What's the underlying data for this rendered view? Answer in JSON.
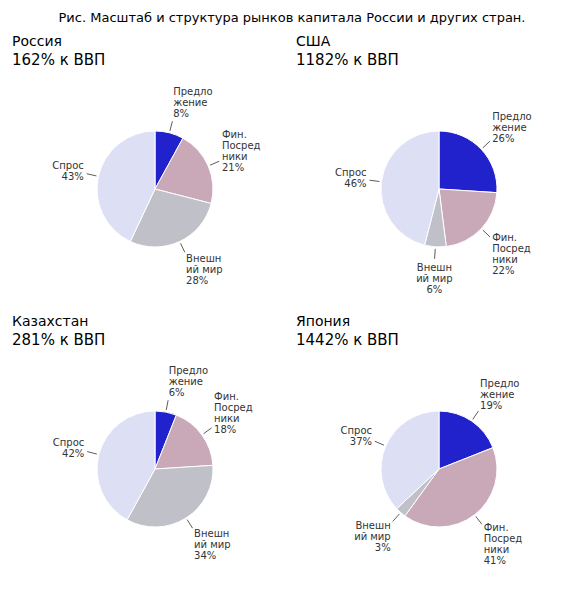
{
  "title": "Рис. Масштаб и структура рынков капитала России и других стран.",
  "chart_data": [
    {
      "type": "pie",
      "title": "Россия",
      "subtitle": "162% к ВВП",
      "categories": [
        "Предло\nжение",
        "Фин.\nПосред\nники",
        "Внешн\nий мир",
        "Спрос"
      ],
      "values": [
        8,
        21,
        28,
        43
      ],
      "value_labels": [
        "8%",
        "21%",
        "28%",
        "43%"
      ],
      "colors": [
        "#2222cc",
        "#c9a8b8",
        "#c0c0c8",
        "#dde0f5"
      ],
      "data_labels": true
    },
    {
      "type": "pie",
      "title": "США",
      "subtitle": "1182% к ВВП",
      "categories": [
        "Предло\nжение",
        "Фин.\nПосред\nники",
        "Внешн\nий мир",
        "Спрос"
      ],
      "values": [
        26,
        22,
        6,
        46
      ],
      "value_labels": [
        "26%",
        "22%",
        "6%",
        "46%"
      ],
      "colors": [
        "#2222cc",
        "#c9a8b8",
        "#c0c0c8",
        "#dde0f5"
      ],
      "data_labels": true
    },
    {
      "type": "pie",
      "title": "Казахстан",
      "subtitle": "281% к ВВП",
      "categories": [
        "Предло\nжение",
        "Фин.\nПосред\nники",
        "Внешн\nий мир",
        "Спрос"
      ],
      "values": [
        6,
        18,
        34,
        42
      ],
      "value_labels": [
        "6%",
        "18%",
        "34%",
        "42%"
      ],
      "colors": [
        "#2222cc",
        "#c9a8b8",
        "#c0c0c8",
        "#dde0f5"
      ],
      "data_labels": true
    },
    {
      "type": "pie",
      "title": "Япония",
      "subtitle": "1442% к ВВП",
      "categories": [
        "Предло\nжение",
        "Фин.\nПосред\nники",
        "Внешн\nий мир",
        "Спрос"
      ],
      "values": [
        19,
        41,
        3,
        37
      ],
      "value_labels": [
        "19%",
        "41%",
        "3%",
        "37%"
      ],
      "colors": [
        "#2222cc",
        "#c9a8b8",
        "#c0c0c8",
        "#dde0f5"
      ],
      "data_labels": true
    }
  ]
}
